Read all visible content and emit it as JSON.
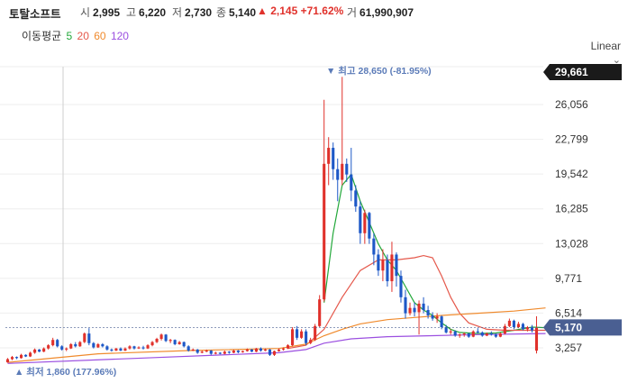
{
  "stock": {
    "name": "토탈소프트",
    "open_label": "시",
    "open": "2,995",
    "high_label": "고",
    "high": "6,220",
    "low_label": "저",
    "low": "2,730",
    "close_label": "종",
    "close": "5,140",
    "change_arrow": "▲",
    "change": "2,145",
    "change_pct": "+71.62%",
    "volume_label": "거",
    "volume": "61,990,907"
  },
  "ma_legend": {
    "label": "이동평균",
    "items": [
      {
        "period": "5",
        "color": "#22a83a"
      },
      {
        "period": "20",
        "color": "#e5584b"
      },
      {
        "period": "60",
        "color": "#f08a2c"
      },
      {
        "period": "120",
        "color": "#9b4fe0"
      }
    ]
  },
  "scale_button": {
    "label": "Linear",
    "icon": "chevron-down-icon"
  },
  "colors": {
    "up": "#e0312b",
    "down": "#1d58c7",
    "annotation": "#5b7bb8",
    "current_tag": "#4a5f92",
    "max_tag": "#1a1a1a"
  },
  "chart_data": {
    "type": "candlestick",
    "yaxis_ticks": [
      26056,
      22799,
      19542,
      16285,
      13028,
      9771,
      6514,
      3257
    ],
    "yaxis_tick_labels": [
      "26,056",
      "22,799",
      "19,542",
      "16,285",
      "13,028",
      "9,771",
      "6,514",
      "3,257"
    ],
    "ylim": [
      1500,
      30000
    ],
    "axis_max_tag": "29,661",
    "current_price_tag": "5,170",
    "current_price": 5170,
    "annotations": {
      "high": {
        "text": "▼ 최고 28,650 (-81.95%)",
        "value": 28650
      },
      "low": {
        "text": "▲ 최저 1,860 (177.96%)",
        "value": 1860
      }
    },
    "candles": [
      [
        1900,
        2300,
        1860,
        2200
      ],
      [
        2200,
        2500,
        2100,
        2400
      ],
      [
        2400,
        2450,
        2200,
        2300
      ],
      [
        2300,
        2700,
        2250,
        2600
      ],
      [
        2600,
        2650,
        2400,
        2450
      ],
      [
        2450,
        2900,
        2400,
        2800
      ],
      [
        2800,
        3200,
        2700,
        3100
      ],
      [
        3100,
        3150,
        2850,
        2900
      ],
      [
        2900,
        3300,
        2850,
        3200
      ],
      [
        3200,
        3600,
        3100,
        3500
      ],
      [
        3500,
        4200,
        3400,
        4000
      ],
      [
        4000,
        4100,
        3300,
        3400
      ],
      [
        3400,
        3500,
        3000,
        3100
      ],
      [
        3100,
        3300,
        2950,
        3200
      ],
      [
        3200,
        3700,
        3150,
        3600
      ],
      [
        3600,
        3800,
        3300,
        3400
      ],
      [
        3400,
        3900,
        3350,
        3800
      ],
      [
        3800,
        4700,
        3700,
        4600
      ],
      [
        4600,
        5100,
        3500,
        3700
      ],
      [
        3700,
        3800,
        3200,
        3300
      ],
      [
        3300,
        3700,
        3250,
        3600
      ],
      [
        3600,
        3700,
        3300,
        3400
      ],
      [
        3400,
        3500,
        3000,
        3100
      ],
      [
        3100,
        3200,
        2900,
        3000
      ],
      [
        3000,
        3250,
        2950,
        3200
      ],
      [
        3200,
        3300,
        2950,
        3000
      ],
      [
        3000,
        3300,
        2950,
        3200
      ],
      [
        3200,
        3500,
        3100,
        3400
      ],
      [
        3400,
        3450,
        3100,
        3200
      ],
      [
        3200,
        3400,
        3150,
        3300
      ],
      [
        3300,
        3450,
        3100,
        3200
      ],
      [
        3200,
        3600,
        3150,
        3500
      ],
      [
        3500,
        3900,
        3400,
        3800
      ],
      [
        3800,
        4200,
        3700,
        4100
      ],
      [
        4100,
        4600,
        3950,
        4500
      ],
      [
        4500,
        4550,
        3800,
        3900
      ],
      [
        3900,
        4100,
        3700,
        4000
      ],
      [
        4000,
        4050,
        3500,
        3600
      ],
      [
        3600,
        3900,
        3550,
        3800
      ],
      [
        3800,
        3850,
        3300,
        3400
      ],
      [
        3400,
        3500,
        2900,
        3000
      ],
      [
        3000,
        3200,
        2950,
        3100
      ],
      [
        3100,
        3150,
        2700,
        2800
      ],
      [
        2800,
        3000,
        2750,
        2900
      ],
      [
        2900,
        3100,
        2850,
        3000
      ],
      [
        3000,
        3050,
        2600,
        2700
      ],
      [
        2700,
        2900,
        2650,
        2800
      ],
      [
        2800,
        2850,
        2650,
        2700
      ],
      [
        2700,
        3000,
        2650,
        2900
      ],
      [
        2900,
        2950,
        2700,
        2800
      ],
      [
        2800,
        3100,
        2750,
        3000
      ],
      [
        3000,
        3050,
        2750,
        2850
      ],
      [
        2850,
        3000,
        2800,
        2950
      ],
      [
        2950,
        3200,
        2900,
        3100
      ],
      [
        3100,
        3150,
        2850,
        2900
      ],
      [
        2900,
        3250,
        2850,
        3200
      ],
      [
        3200,
        3300,
        2900,
        3000
      ],
      [
        3000,
        3200,
        2950,
        3100
      ],
      [
        3100,
        3150,
        2500,
        2600
      ],
      [
        2600,
        3000,
        2500,
        2950
      ],
      [
        2950,
        3200,
        2900,
        3100
      ],
      [
        3100,
        3300,
        3000,
        3200
      ],
      [
        3200,
        3600,
        3150,
        3500
      ],
      [
        3500,
        5200,
        3400,
        5000
      ],
      [
        5000,
        5300,
        4000,
        4200
      ],
      [
        4200,
        5000,
        4100,
        4800
      ],
      [
        4800,
        5000,
        3500,
        3700
      ],
      [
        3700,
        4200,
        3600,
        4000
      ],
      [
        4000,
        5500,
        3900,
        5300
      ],
      [
        5300,
        8200,
        5200,
        7800
      ],
      [
        7800,
        26500,
        7600,
        20500
      ],
      [
        20500,
        23000,
        18500,
        22000
      ],
      [
        22000,
        22500,
        19000,
        20000
      ],
      [
        20000,
        21000,
        17000,
        19000
      ],
      [
        19000,
        28650,
        18500,
        20500
      ],
      [
        20500,
        21000,
        18800,
        19500
      ],
      [
        19500,
        22000,
        17000,
        18000
      ],
      [
        18000,
        18500,
        16000,
        16500
      ],
      [
        16500,
        17000,
        13000,
        14000
      ],
      [
        14000,
        16200,
        13000,
        15900
      ],
      [
        15900,
        16000,
        13000,
        13500
      ],
      [
        13500,
        14000,
        11000,
        12000
      ],
      [
        12000,
        12500,
        10000,
        10500
      ],
      [
        10500,
        12500,
        9500,
        11500
      ],
      [
        11500,
        12000,
        9000,
        9500
      ],
      [
        9500,
        13200,
        8500,
        12000
      ],
      [
        12000,
        12200,
        9000,
        10000
      ],
      [
        10000,
        10500,
        7500,
        8000
      ],
      [
        8000,
        8700,
        6000,
        6500
      ],
      [
        6500,
        7500,
        6300,
        7000
      ],
      [
        7000,
        7500,
        6200,
        6600
      ],
      [
        6600,
        7700,
        4500,
        7400
      ],
      [
        7400,
        8000,
        6500,
        6800
      ],
      [
        6800,
        7200,
        6000,
        6300
      ],
      [
        6300,
        6600,
        5800,
        6000
      ],
      [
        6000,
        6500,
        5600,
        6200
      ],
      [
        6200,
        6300,
        5000,
        5200
      ],
      [
        5200,
        5400,
        4600,
        4700
      ],
      [
        4700,
        5000,
        4500,
        4800
      ],
      [
        4800,
        4900,
        4300,
        4400
      ],
      [
        4400,
        4600,
        4200,
        4500
      ],
      [
        4500,
        4700,
        4300,
        4600
      ],
      [
        4600,
        4650,
        4200,
        4300
      ],
      [
        4300,
        4900,
        4250,
        4800
      ],
      [
        4800,
        5100,
        4600,
        4700
      ],
      [
        4700,
        4800,
        4300,
        4400
      ],
      [
        4400,
        4700,
        4350,
        4600
      ],
      [
        4600,
        4800,
        4400,
        4500
      ],
      [
        4500,
        4600,
        4200,
        4300
      ],
      [
        4300,
        4700,
        4250,
        4600
      ],
      [
        4600,
        5500,
        4500,
        5300
      ],
      [
        5300,
        6000,
        5200,
        5800
      ],
      [
        5800,
        5900,
        5000,
        5200
      ],
      [
        5200,
        5700,
        5100,
        5500
      ],
      [
        5500,
        5600,
        4900,
        5000
      ],
      [
        5000,
        5300,
        4800,
        5200
      ],
      [
        5200,
        5400,
        4700,
        4900
      ],
      [
        2995,
        6220,
        2730,
        5140
      ]
    ],
    "ma_lines": [
      {
        "name": "5",
        "points": [
          [
            70,
            7500
          ],
          [
            72,
            14000
          ],
          [
            74,
            18500
          ],
          [
            76,
            19500
          ],
          [
            78,
            17000
          ],
          [
            80,
            15000
          ],
          [
            82,
            13000
          ],
          [
            84,
            11500
          ],
          [
            86,
            10500
          ],
          [
            88,
            9000
          ],
          [
            90,
            7500
          ],
          [
            92,
            6800
          ],
          [
            94,
            6300
          ],
          [
            96,
            5600
          ],
          [
            98,
            5000
          ],
          [
            100,
            4700
          ],
          [
            104,
            4600
          ],
          [
            108,
            4650
          ],
          [
            112,
            4900
          ],
          [
            116,
            5200
          ],
          [
            119,
            5150
          ]
        ]
      },
      {
        "name": "20",
        "points": [
          [
            62,
            3200
          ],
          [
            66,
            3500
          ],
          [
            70,
            5000
          ],
          [
            74,
            8000
          ],
          [
            78,
            10500
          ],
          [
            82,
            11500
          ],
          [
            86,
            11500
          ],
          [
            90,
            11700
          ],
          [
            92,
            11900
          ],
          [
            94,
            11700
          ],
          [
            96,
            10000
          ],
          [
            98,
            8000
          ],
          [
            100,
            6500
          ],
          [
            102,
            5600
          ],
          [
            106,
            5000
          ],
          [
            110,
            4900
          ],
          [
            114,
            4900
          ],
          [
            119,
            4900
          ]
        ]
      },
      {
        "name": "60",
        "points": [
          [
            0,
            1900
          ],
          [
            20,
            2700
          ],
          [
            40,
            3000
          ],
          [
            60,
            3200
          ],
          [
            66,
            3600
          ],
          [
            70,
            4400
          ],
          [
            74,
            5000
          ],
          [
            78,
            5500
          ],
          [
            84,
            5900
          ],
          [
            90,
            6100
          ],
          [
            96,
            6300
          ],
          [
            104,
            6500
          ],
          [
            112,
            6700
          ],
          [
            119,
            7000
          ]
        ]
      },
      {
        "name": "120",
        "points": [
          [
            0,
            1800
          ],
          [
            30,
            2300
          ],
          [
            60,
            2800
          ],
          [
            66,
            3100
          ],
          [
            70,
            3700
          ],
          [
            76,
            4100
          ],
          [
            84,
            4300
          ],
          [
            94,
            4400
          ],
          [
            104,
            4500
          ],
          [
            119,
            4600
          ]
        ]
      }
    ]
  }
}
